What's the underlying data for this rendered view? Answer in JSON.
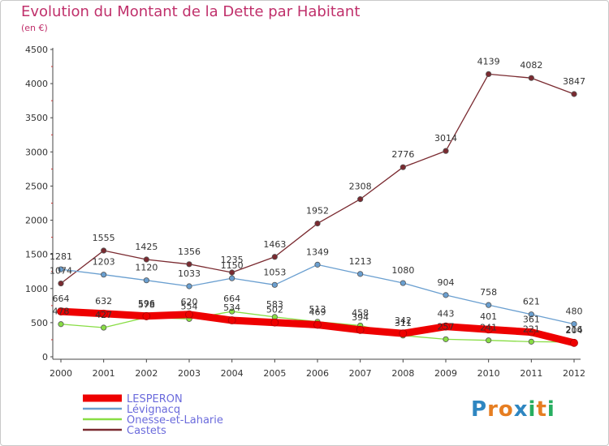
{
  "title": "Evolution du Montant de la Dette par Habitant",
  "subtitle": "(en €)",
  "brand": {
    "letters": [
      "P",
      "r",
      "o",
      "x",
      "i",
      "t",
      "i"
    ],
    "colors": [
      "#2e86c1",
      "#e67e22",
      "#e67e22",
      "#2e86c1",
      "#27ae60",
      "#e67e22",
      "#27ae60"
    ]
  },
  "chart_data": {
    "type": "line",
    "categories": [
      "2000",
      "2001",
      "2002",
      "2003",
      "2004",
      "2005",
      "2006",
      "2007",
      "2008",
      "2009",
      "2010",
      "2011",
      "2012"
    ],
    "ylim": [
      0,
      4500
    ],
    "yticks": [
      0,
      500,
      1000,
      1500,
      2000,
      2500,
      3000,
      3500,
      4000,
      4500
    ],
    "grid": false,
    "legend_position": "bottom-left",
    "series": [
      {
        "name": "LESPERON",
        "color": "#ee0000",
        "values": [
          664,
          632,
          596,
          620,
          534,
          502,
          469,
          394,
          342,
          443,
          401,
          361,
          204
        ]
      },
      {
        "name": "Lévignacq",
        "color": "#6a9fd0",
        "values": [
          1281,
          1203,
          1120,
          1033,
          1150,
          1053,
          1349,
          1213,
          1080,
          904,
          758,
          621,
          480
        ]
      },
      {
        "name": "Onesse-et-Laharie",
        "color": "#88dd44",
        "values": [
          478,
          427,
          578,
          554,
          664,
          583,
          513,
          458,
          311,
          257,
          241,
          221,
          216
        ]
      },
      {
        "name": "Castets",
        "color": "#7a2a30",
        "values": [
          1074,
          1555,
          1425,
          1356,
          1235,
          1463,
          1952,
          2308,
          2776,
          3014,
          4139,
          4082,
          3847
        ]
      }
    ]
  }
}
